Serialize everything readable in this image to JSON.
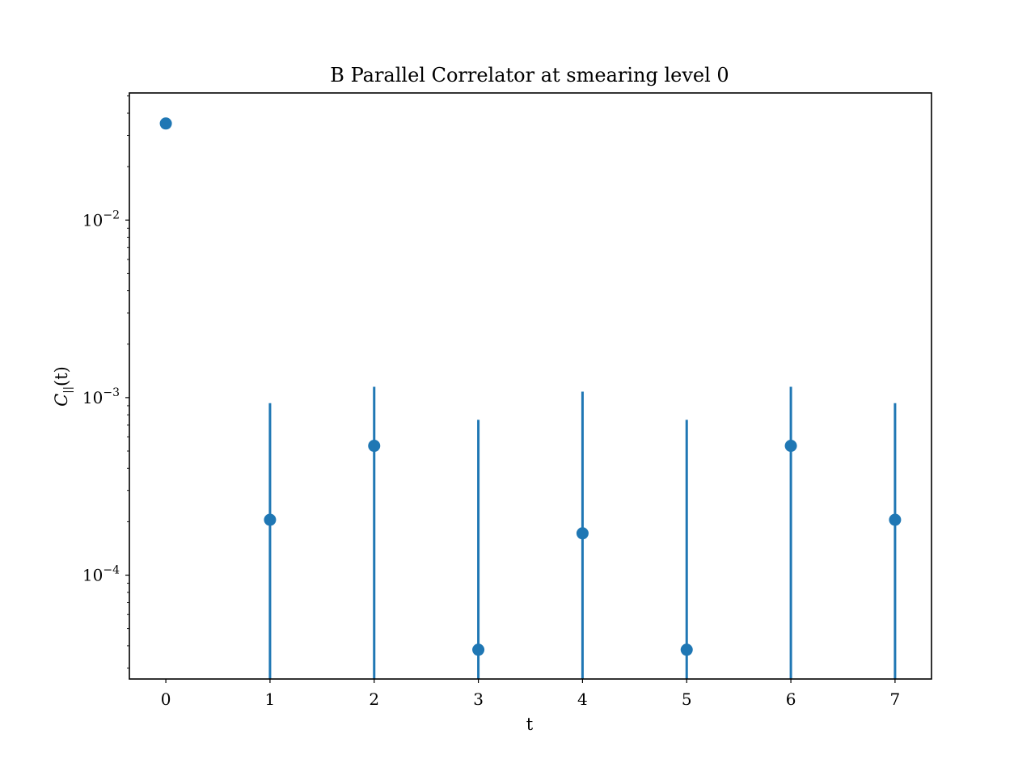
{
  "chart_data": {
    "type": "scatter",
    "title": "B Parallel Correlator at smearing level 0",
    "xlabel": "t",
    "ylabel_main": "C",
    "ylabel_sub": "||",
    "ylabel_arg": "(t)",
    "yscale": "log",
    "xlim": [
      -0.35,
      7.35
    ],
    "ylim": [
      2.6e-05,
      0.052
    ],
    "x_ticks": [
      0,
      1,
      2,
      3,
      4,
      5,
      6,
      7
    ],
    "y_ticks": [
      {
        "value": 0.0001,
        "base": "10",
        "exp": "−4"
      },
      {
        "value": 0.001,
        "base": "10",
        "exp": "−3"
      },
      {
        "value": 0.01,
        "base": "10",
        "exp": "−2"
      }
    ],
    "grid": false,
    "legend": "none",
    "color": "#1f77b4",
    "points": [
      {
        "x": 0,
        "y": 0.035,
        "yerr_low": null,
        "yerr_high": null
      },
      {
        "x": 1,
        "y": 0.000205,
        "yerr_low": 2.6e-05,
        "yerr_high": 0.00093
      },
      {
        "x": 2,
        "y": 0.000535,
        "yerr_low": 2.6e-05,
        "yerr_high": 0.00115
      },
      {
        "x": 3,
        "y": 3.8e-05,
        "yerr_low": 2.6e-05,
        "yerr_high": 0.00075
      },
      {
        "x": 4,
        "y": 0.000172,
        "yerr_low": 2.6e-05,
        "yerr_high": 0.00108
      },
      {
        "x": 5,
        "y": 3.8e-05,
        "yerr_low": 2.6e-05,
        "yerr_high": 0.00075
      },
      {
        "x": 6,
        "y": 0.000535,
        "yerr_low": 2.6e-05,
        "yerr_high": 0.00115
      },
      {
        "x": 7,
        "y": 0.000205,
        "yerr_low": 2.6e-05,
        "yerr_high": 0.00093
      }
    ]
  }
}
